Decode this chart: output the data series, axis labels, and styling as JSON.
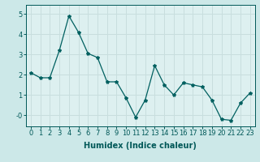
{
  "x": [
    0,
    1,
    2,
    3,
    4,
    5,
    6,
    7,
    8,
    9,
    10,
    11,
    12,
    13,
    14,
    15,
    16,
    17,
    18,
    19,
    20,
    21,
    22,
    23
  ],
  "y": [
    2.1,
    1.85,
    1.85,
    3.2,
    4.9,
    4.1,
    3.05,
    2.85,
    1.65,
    1.65,
    0.85,
    -0.1,
    0.75,
    2.45,
    1.5,
    1.0,
    1.6,
    1.5,
    1.4,
    0.75,
    -0.2,
    -0.25,
    0.6,
    1.1
  ],
  "line_color": "#006060",
  "marker": "*",
  "marker_size": 3,
  "xlabel": "Humidex (Indice chaleur)",
  "xlim": [
    -0.5,
    23.5
  ],
  "ylim": [
    -0.55,
    5.45
  ],
  "yticks": [
    0,
    1,
    2,
    3,
    4,
    5
  ],
  "ytick_labels": [
    "-0",
    "1",
    "2",
    "3",
    "4",
    "5"
  ],
  "xticks": [
    0,
    1,
    2,
    3,
    4,
    5,
    6,
    7,
    8,
    9,
    10,
    11,
    12,
    13,
    14,
    15,
    16,
    17,
    18,
    19,
    20,
    21,
    22,
    23
  ],
  "grid_color": "#c8dede",
  "bg_color": "#cce8e8",
  "plot_bg_color": "#ddf0f0",
  "axis_color": "#005858",
  "label_fontsize": 7,
  "tick_fontsize": 6
}
